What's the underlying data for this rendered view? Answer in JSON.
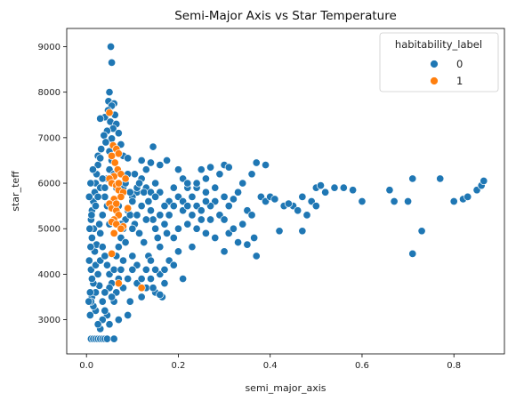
{
  "chart_data": {
    "type": "scatter",
    "title": "Semi-Major Axis vs Star Temperature",
    "xlabel": "semi_major_axis",
    "ylabel": "star_teff",
    "xlim": [
      -0.043,
      0.91
    ],
    "ylim": [
      2250,
      9400
    ],
    "xticks": [
      0.0,
      0.2,
      0.4,
      0.6,
      0.8
    ],
    "xtick_labels": [
      "0.0",
      "0.2",
      "0.4",
      "0.6",
      "0.8"
    ],
    "yticks": [
      3000,
      4000,
      5000,
      6000,
      7000,
      8000,
      9000
    ],
    "ytick_labels": [
      "3000",
      "4000",
      "5000",
      "6000",
      "7000",
      "8000",
      "9000"
    ],
    "grid": false,
    "legend": {
      "title": "habitability_label",
      "placement": "top-right"
    },
    "series": [
      {
        "name": "0",
        "color": "#1f77b4",
        "points": [
          [
            0.053,
            9000
          ],
          [
            0.055,
            8650
          ],
          [
            0.05,
            8000
          ],
          [
            0.048,
            7800
          ],
          [
            0.06,
            7750
          ],
          [
            0.055,
            7700
          ],
          [
            0.047,
            7600
          ],
          [
            0.062,
            7500
          ],
          [
            0.04,
            7450
          ],
          [
            0.03,
            7420
          ],
          [
            0.052,
            7350
          ],
          [
            0.065,
            7300
          ],
          [
            0.058,
            7200
          ],
          [
            0.045,
            7150
          ],
          [
            0.07,
            7100
          ],
          [
            0.038,
            7050
          ],
          [
            0.055,
            6980
          ],
          [
            0.042,
            6900
          ],
          [
            0.075,
            6850
          ],
          [
            0.06,
            6800
          ],
          [
            0.032,
            6750
          ],
          [
            0.05,
            6700
          ],
          [
            0.068,
            6650
          ],
          [
            0.025,
            6600
          ],
          [
            0.08,
            6600
          ],
          [
            0.09,
            6550
          ],
          [
            0.12,
            6500
          ],
          [
            0.145,
            6800
          ],
          [
            0.175,
            6500
          ],
          [
            0.16,
            6400
          ],
          [
            0.14,
            6450
          ],
          [
            0.2,
            6300
          ],
          [
            0.25,
            6300
          ],
          [
            0.27,
            6350
          ],
          [
            0.29,
            6200
          ],
          [
            0.3,
            6400
          ],
          [
            0.31,
            6350
          ],
          [
            0.37,
            6450
          ],
          [
            0.39,
            6400
          ],
          [
            0.36,
            6200
          ],
          [
            0.34,
            6000
          ],
          [
            0.33,
            5800
          ],
          [
            0.32,
            5650
          ],
          [
            0.35,
            5400
          ],
          [
            0.38,
            5700
          ],
          [
            0.36,
            5300
          ],
          [
            0.31,
            5500
          ],
          [
            0.28,
            5600
          ],
          [
            0.26,
            5800
          ],
          [
            0.24,
            5900
          ],
          [
            0.22,
            5900
          ],
          [
            0.21,
            6100
          ],
          [
            0.19,
            5900
          ],
          [
            0.18,
            5600
          ],
          [
            0.17,
            5500
          ],
          [
            0.16,
            5800
          ],
          [
            0.15,
            6000
          ],
          [
            0.13,
            5900
          ],
          [
            0.11,
            5800
          ],
          [
            0.1,
            5700
          ],
          [
            0.21,
            5400
          ],
          [
            0.23,
            5300
          ],
          [
            0.25,
            5200
          ],
          [
            0.27,
            5500
          ],
          [
            0.29,
            5300
          ],
          [
            0.3,
            5200
          ],
          [
            0.22,
            5100
          ],
          [
            0.2,
            5000
          ],
          [
            0.19,
            4800
          ],
          [
            0.175,
            4900
          ],
          [
            0.26,
            4900
          ],
          [
            0.24,
            5000
          ],
          [
            0.31,
            4900
          ],
          [
            0.33,
            4700
          ],
          [
            0.35,
            4650
          ],
          [
            0.37,
            4400
          ],
          [
            0.365,
            4800
          ],
          [
            0.42,
            4950
          ],
          [
            0.39,
            5600
          ],
          [
            0.4,
            5700
          ],
          [
            0.41,
            5650
          ],
          [
            0.43,
            5500
          ],
          [
            0.45,
            5500
          ],
          [
            0.47,
            5700
          ],
          [
            0.49,
            5600
          ],
          [
            0.5,
            5900
          ],
          [
            0.51,
            5950
          ],
          [
            0.52,
            5800
          ],
          [
            0.54,
            5900
          ],
          [
            0.56,
            5900
          ],
          [
            0.58,
            5850
          ],
          [
            0.6,
            5600
          ],
          [
            0.5,
            5500
          ],
          [
            0.48,
            5300
          ],
          [
            0.46,
            5400
          ],
          [
            0.44,
            5550
          ],
          [
            0.47,
            4950
          ],
          [
            0.66,
            5850
          ],
          [
            0.67,
            5600
          ],
          [
            0.7,
            5600
          ],
          [
            0.71,
            6100
          ],
          [
            0.77,
            6100
          ],
          [
            0.71,
            4450
          ],
          [
            0.73,
            4950
          ],
          [
            0.8,
            5600
          ],
          [
            0.82,
            5650
          ],
          [
            0.83,
            5700
          ],
          [
            0.85,
            5850
          ],
          [
            0.86,
            5950
          ],
          [
            0.865,
            6050
          ],
          [
            0.2,
            4500
          ],
          [
            0.18,
            4300
          ],
          [
            0.16,
            4000
          ],
          [
            0.14,
            3900
          ],
          [
            0.15,
            3600
          ],
          [
            0.13,
            3700
          ],
          [
            0.12,
            3500
          ],
          [
            0.11,
            4200
          ],
          [
            0.1,
            4400
          ],
          [
            0.21,
            3900
          ],
          [
            0.17,
            3800
          ],
          [
            0.165,
            3500
          ],
          [
            0.09,
            3900
          ],
          [
            0.08,
            3700
          ],
          [
            0.095,
            3400
          ],
          [
            0.09,
            3100
          ],
          [
            0.07,
            3000
          ],
          [
            0.05,
            2900
          ],
          [
            0.045,
            3100
          ],
          [
            0.04,
            3200
          ],
          [
            0.035,
            3000
          ],
          [
            0.03,
            2800
          ],
          [
            0.025,
            2900
          ],
          [
            0.02,
            3200
          ],
          [
            0.015,
            3300
          ],
          [
            0.012,
            3500
          ],
          [
            0.01,
            3400
          ],
          [
            0.008,
            3100
          ],
          [
            0.02,
            3600
          ],
          [
            0.028,
            3750
          ],
          [
            0.01,
            2580
          ],
          [
            0.015,
            2580
          ],
          [
            0.02,
            2580
          ],
          [
            0.025,
            2580
          ],
          [
            0.03,
            2580
          ],
          [
            0.035,
            2580
          ],
          [
            0.04,
            2580
          ],
          [
            0.045,
            2580
          ],
          [
            0.06,
            2580
          ],
          [
            0.015,
            3800
          ],
          [
            0.01,
            4100
          ],
          [
            0.02,
            4200
          ],
          [
            0.025,
            4000
          ],
          [
            0.03,
            4300
          ],
          [
            0.018,
            4500
          ],
          [
            0.022,
            4650
          ],
          [
            0.012,
            4800
          ],
          [
            0.016,
            5000
          ],
          [
            0.01,
            5200
          ],
          [
            0.012,
            5400
          ],
          [
            0.015,
            5600
          ],
          [
            0.018,
            5800
          ],
          [
            0.02,
            6000
          ],
          [
            0.022,
            6200
          ],
          [
            0.025,
            6400
          ],
          [
            0.03,
            6550
          ],
          [
            0.028,
            5100
          ],
          [
            0.035,
            4600
          ],
          [
            0.04,
            4400
          ],
          [
            0.045,
            4200
          ],
          [
            0.05,
            4000
          ],
          [
            0.055,
            3800
          ],
          [
            0.06,
            4100
          ],
          [
            0.065,
            4400
          ],
          [
            0.07,
            4600
          ],
          [
            0.075,
            4800
          ],
          [
            0.08,
            5000
          ],
          [
            0.085,
            5200
          ],
          [
            0.09,
            5400
          ],
          [
            0.1,
            5600
          ],
          [
            0.11,
            5900
          ],
          [
            0.12,
            6100
          ],
          [
            0.13,
            6300
          ],
          [
            0.105,
            6200
          ],
          [
            0.115,
            6000
          ],
          [
            0.125,
            5800
          ],
          [
            0.135,
            5600
          ],
          [
            0.14,
            5400
          ],
          [
            0.145,
            5200
          ],
          [
            0.15,
            5000
          ],
          [
            0.155,
            4800
          ],
          [
            0.16,
            4600
          ],
          [
            0.135,
            4400
          ],
          [
            0.125,
            4700
          ],
          [
            0.115,
            4900
          ],
          [
            0.105,
            5100
          ],
          [
            0.095,
            5300
          ],
          [
            0.085,
            4700
          ],
          [
            0.08,
            4300
          ],
          [
            0.075,
            4100
          ],
          [
            0.07,
            3900
          ],
          [
            0.065,
            3600
          ],
          [
            0.06,
            3400
          ],
          [
            0.055,
            3500
          ],
          [
            0.05,
            3700
          ],
          [
            0.04,
            3600
          ],
          [
            0.035,
            3400
          ],
          [
            0.03,
            4900
          ],
          [
            0.035,
            5300
          ],
          [
            0.04,
            5700
          ],
          [
            0.045,
            6100
          ],
          [
            0.05,
            6300
          ],
          [
            0.055,
            6500
          ],
          [
            0.06,
            6200
          ],
          [
            0.065,
            5900
          ],
          [
            0.07,
            5500
          ],
          [
            0.075,
            5100
          ],
          [
            0.08,
            5900
          ],
          [
            0.085,
            6000
          ],
          [
            0.09,
            6200
          ],
          [
            0.095,
            5800
          ],
          [
            0.1,
            5000
          ],
          [
            0.11,
            5300
          ],
          [
            0.12,
            5500
          ],
          [
            0.13,
            5200
          ],
          [
            0.14,
            5800
          ],
          [
            0.15,
            5700
          ],
          [
            0.16,
            5300
          ],
          [
            0.17,
            5100
          ],
          [
            0.18,
            5300
          ],
          [
            0.19,
            5500
          ],
          [
            0.2,
            5700
          ],
          [
            0.21,
            5600
          ],
          [
            0.22,
            5500
          ],
          [
            0.23,
            5700
          ],
          [
            0.24,
            5500
          ],
          [
            0.25,
            5400
          ],
          [
            0.26,
            5600
          ],
          [
            0.27,
            5200
          ],
          [
            0.23,
            4600
          ],
          [
            0.28,
            4800
          ],
          [
            0.3,
            4500
          ],
          [
            0.32,
            5000
          ],
          [
            0.34,
            5100
          ],
          [
            0.3,
            5700
          ],
          [
            0.28,
            5900
          ],
          [
            0.26,
            6100
          ],
          [
            0.24,
            6000
          ],
          [
            0.22,
            6000
          ],
          [
            0.005,
            3400
          ],
          [
            0.008,
            3600
          ],
          [
            0.012,
            3900
          ],
          [
            0.006,
            4300
          ],
          [
            0.009,
            4600
          ],
          [
            0.007,
            5000
          ],
          [
            0.011,
            5300
          ],
          [
            0.006,
            5700
          ],
          [
            0.009,
            6000
          ],
          [
            0.014,
            6300
          ],
          [
            0.02,
            5500
          ],
          [
            0.025,
            5700
          ],
          [
            0.03,
            5900
          ],
          [
            0.035,
            6100
          ],
          [
            0.04,
            5900
          ],
          [
            0.045,
            5500
          ],
          [
            0.05,
            5100
          ],
          [
            0.06,
            4900
          ],
          [
            0.065,
            5100
          ],
          [
            0.07,
            5300
          ],
          [
            0.1,
            4100
          ],
          [
            0.11,
            3800
          ],
          [
            0.12,
            3900
          ],
          [
            0.13,
            4100
          ],
          [
            0.14,
            4300
          ],
          [
            0.17,
            4100
          ],
          [
            0.19,
            4200
          ],
          [
            0.15,
            4100
          ],
          [
            0.145,
            3700
          ],
          [
            0.16,
            3550
          ]
        ]
      },
      {
        "name": "1",
        "color": "#ff7f0e",
        "points": [
          [
            0.05,
            7550
          ],
          [
            0.058,
            6830
          ],
          [
            0.065,
            6750
          ],
          [
            0.07,
            6650
          ],
          [
            0.055,
            6600
          ],
          [
            0.062,
            6450
          ],
          [
            0.068,
            6300
          ],
          [
            0.075,
            6200
          ],
          [
            0.06,
            6150
          ],
          [
            0.05,
            6100
          ],
          [
            0.055,
            6000
          ],
          [
            0.065,
            5950
          ],
          [
            0.07,
            5850
          ],
          [
            0.08,
            5800
          ],
          [
            0.075,
            5700
          ],
          [
            0.06,
            5650
          ],
          [
            0.05,
            5550
          ],
          [
            0.055,
            5450
          ],
          [
            0.065,
            5400
          ],
          [
            0.07,
            5300
          ],
          [
            0.06,
            5200
          ],
          [
            0.055,
            5150
          ],
          [
            0.065,
            5100
          ],
          [
            0.08,
            5050
          ],
          [
            0.075,
            5000
          ],
          [
            0.06,
            4900
          ],
          [
            0.055,
            4450
          ],
          [
            0.07,
            3800
          ],
          [
            0.12,
            3700
          ],
          [
            0.09,
            5450
          ],
          [
            0.085,
            6100
          ],
          [
            0.065,
            5550
          ],
          [
            0.07,
            6000
          ]
        ]
      }
    ]
  }
}
